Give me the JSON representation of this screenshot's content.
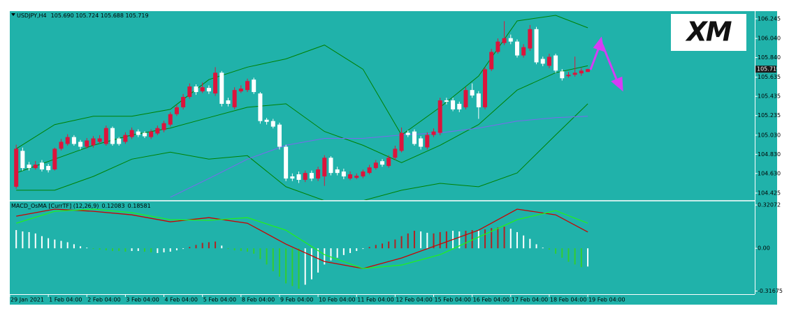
{
  "chart_data": [
    {
      "type": "candlestick",
      "title": "USDJPY,H4",
      "ohlc_label": "105.690 105.724 105.688 105.719",
      "up_color": "#dc143c",
      "down_color": "#ffffff",
      "logo": "XM",
      "xlim": [
        -1,
        115
      ],
      "ylim": [
        104.352,
        106.332
      ],
      "yticks": [
        106.245,
        {
          "value": 106.04,
          "label": "106.040"
        },
        {
          "value": 105.84,
          "label": "105.840"
        },
        105.635,
        105.435,
        105.235,
        {
          "value": 105.03,
          "label": "105.030"
        },
        {
          "value": 104.83,
          "label": "104.830"
        },
        {
          "value": 104.63,
          "label": "104.630"
        },
        104.425
      ],
      "open": [
        104.491,
        104.866,
        104.722,
        104.686,
        104.743,
        104.708,
        104.672,
        104.888,
        104.938,
        105.01,
        104.96,
        104.909,
        104.924,
        104.96,
        104.938,
        105.104,
        104.996,
        104.96,
        105.01,
        105.068,
        105.054,
        105.01,
        105.047,
        105.083,
        105.14,
        105.249,
        105.321,
        105.429,
        105.538,
        105.487,
        105.523,
        105.465,
        105.682,
        105.393,
        105.321,
        105.487,
        105.501,
        105.61,
        105.465,
        105.191,
        105.177,
        105.14,
        104.909,
        104.599,
        104.621,
        104.563,
        104.635,
        104.577,
        104.599,
        104.794,
        104.672,
        104.65,
        104.577,
        104.584,
        104.599,
        104.635,
        104.686,
        104.758,
        104.708,
        104.794,
        104.866,
        105.054,
        105.068,
        104.996,
        104.902,
        105.032,
        105.054,
        105.393,
        105.393,
        105.357,
        105.321,
        105.501,
        105.465,
        105.321,
        105.718,
        105.899,
        105.992,
        106.043,
        106.007,
        105.862,
        105.935,
        106.137,
        105.826,
        105.754,
        105.862,
        105.696,
        105.646,
        105.66,
        105.675,
        105.69
      ],
      "high": [
        104.93,
        104.9,
        104.75,
        104.76,
        104.77,
        104.73,
        104.9,
        104.99,
        105.04,
        105.03,
        104.98,
        105.0,
        105.02,
        105.03,
        105.13,
        105.12,
        105.01,
        105.06,
        105.11,
        105.09,
        105.07,
        105.09,
        105.13,
        105.18,
        105.27,
        105.35,
        105.46,
        105.57,
        105.56,
        105.58,
        105.55,
        105.74,
        105.7,
        105.42,
        105.53,
        105.55,
        105.62,
        105.63,
        105.48,
        105.21,
        105.2,
        105.16,
        104.93,
        104.63,
        104.65,
        104.66,
        104.66,
        104.7,
        104.82,
        104.81,
        104.7,
        104.68,
        104.65,
        104.63,
        104.67,
        104.72,
        104.77,
        104.78,
        104.82,
        104.92,
        105.11,
        105.08,
        105.09,
        105.02,
        105.06,
        105.1,
        105.42,
        105.42,
        105.42,
        105.38,
        105.53,
        105.57,
        105.49,
        105.74,
        105.93,
        106.04,
        106.22,
        106.08,
        106.03,
        105.98,
        106.18,
        106.16,
        105.85,
        105.88,
        105.88,
        105.72,
        105.69,
        105.85,
        105.73,
        105.724
      ],
      "low": [
        104.47,
        104.66,
        104.66,
        104.67,
        104.65,
        104.64,
        104.66,
        104.87,
        104.92,
        104.92,
        104.88,
        104.89,
        104.9,
        104.94,
        104.92,
        104.92,
        104.92,
        104.94,
        104.99,
        105.01,
        105.0,
        104.99,
        105.03,
        105.06,
        105.12,
        105.23,
        105.3,
        105.41,
        105.45,
        105.47,
        105.46,
        105.44,
        105.33,
        105.33,
        105.3,
        105.47,
        105.48,
        105.46,
        105.15,
        105.14,
        105.1,
        104.88,
        104.55,
        104.55,
        104.53,
        104.54,
        104.55,
        104.55,
        104.5,
        104.61,
        104.61,
        104.57,
        104.56,
        104.57,
        104.58,
        104.62,
        104.67,
        104.7,
        104.69,
        104.77,
        104.85,
        105.01,
        104.92,
        104.88,
        104.88,
        105.01,
        105.03,
        105.35,
        105.28,
        105.27,
        105.3,
        105.42,
        105.2,
        105.3,
        105.7,
        105.88,
        105.97,
        105.98,
        105.84,
        105.84,
        105.91,
        105.77,
        105.75,
        105.73,
        105.68,
        105.6,
        105.63,
        105.64,
        105.65,
        105.688
      ],
      "close": [
        104.888,
        104.686,
        104.686,
        104.722,
        104.672,
        104.664,
        104.888,
        104.96,
        105.01,
        104.938,
        104.909,
        104.974,
        104.996,
        104.996,
        105.104,
        104.938,
        104.938,
        105.032,
        105.083,
        105.032,
        105.018,
        105.068,
        105.104,
        105.155,
        105.249,
        105.321,
        105.429,
        105.538,
        105.48,
        105.53,
        105.487,
        105.682,
        105.357,
        105.357,
        105.501,
        105.516,
        105.595,
        105.48,
        105.177,
        105.169,
        105.119,
        104.909,
        104.577,
        104.577,
        104.563,
        104.635,
        104.577,
        104.672,
        104.794,
        104.635,
        104.635,
        104.599,
        104.621,
        104.606,
        104.65,
        104.693,
        104.743,
        104.722,
        104.794,
        104.888,
        105.054,
        105.032,
        104.938,
        104.909,
        105.032,
        105.068,
        105.393,
        105.379,
        105.299,
        105.299,
        105.501,
        105.444,
        105.321,
        105.718,
        105.899,
        106.007,
        106.043,
        106.007,
        105.862,
        105.949,
        106.137,
        105.79,
        105.776,
        105.848,
        105.704,
        105.624,
        105.66,
        105.682,
        105.704,
        105.719
      ],
      "lines": [
        {
          "color": "#008000",
          "x": [
            0,
            6,
            12,
            18,
            24,
            30,
            36,
            42,
            48,
            54,
            60,
            66,
            72,
            78,
            84,
            89
          ],
          "values": [
            104.888,
            105.14,
            105.227,
            105.227,
            105.299,
            105.61,
            105.74,
            105.826,
            105.971,
            105.718,
            105.032,
            105.321,
            105.646,
            106.223,
            106.281,
            106.151
          ]
        },
        {
          "color": "#008000",
          "x": [
            0,
            6,
            12,
            18,
            24,
            30,
            36,
            42,
            48,
            54,
            60,
            66,
            72,
            78,
            84,
            89
          ],
          "values": [
            104.635,
            104.779,
            104.924,
            105.032,
            105.104,
            105.213,
            105.321,
            105.357,
            105.068,
            104.924,
            104.743,
            104.924,
            105.14,
            105.501,
            105.682,
            105.754
          ]
        },
        {
          "color": "#008000",
          "x": [
            0,
            6,
            12,
            18,
            24,
            30,
            36,
            42,
            48,
            54,
            60,
            66,
            72,
            78,
            84,
            89
          ],
          "values": [
            104.455,
            104.455,
            104.599,
            104.779,
            104.852,
            104.779,
            104.816,
            104.491,
            104.346,
            104.346,
            104.455,
            104.527,
            104.491,
            104.635,
            105.032,
            105.357
          ]
        },
        {
          "color": "#7b68ee",
          "x": [
            24,
            30,
            36,
            42,
            48,
            54,
            60,
            66,
            72,
            78,
            84,
            89
          ],
          "values": [
            104.382,
            104.577,
            104.779,
            104.924,
            104.996,
            104.996,
            105.032,
            105.054,
            105.104,
            105.177,
            105.213,
            105.227
          ]
        }
      ]
    },
    {
      "type": "bar",
      "title": "MACD_OsMA [CurrTF] (12,26,9)",
      "xlim": [
        -1,
        115
      ],
      "ylim": [
        -0.34,
        0.347
      ],
      "yticks": [
        0.32072,
        {
          "value": 0,
          "label": "0.00"
        },
        -0.31675
      ],
      "xticks": [
        {
          "value": -1,
          "label": "29 Jan 2021"
        },
        {
          "value": 5,
          "label": "1 Feb 04:00"
        },
        {
          "value": 11,
          "label": "2 Feb 04:00"
        },
        {
          "value": 17,
          "label": "3 Feb 04:00"
        },
        {
          "value": 23,
          "label": "4 Feb 04:00"
        },
        {
          "value": 29,
          "label": "5 Feb 04:00"
        },
        {
          "value": 35,
          "label": "8 Feb 04:00"
        },
        {
          "value": 41,
          "label": "9 Feb 04:00"
        },
        {
          "value": 47,
          "label": "10 Feb 04:00"
        },
        {
          "value": 53,
          "label": "11 Feb 04:00"
        },
        {
          "value": 59,
          "label": "12 Feb 04:00"
        },
        {
          "value": 65,
          "label": "15 Feb 04:00"
        },
        {
          "value": 71,
          "label": "16 Feb 04:00"
        },
        {
          "value": 77,
          "label": "17 Feb 04:00"
        },
        {
          "value": 83,
          "label": "18 Feb 04:00"
        },
        {
          "value": 89,
          "label": "19 Feb 04:00"
        }
      ],
      "values": [
        0.135,
        0.125,
        0.12,
        0.11,
        0.09,
        0.075,
        0.065,
        0.055,
        0.045,
        0.03,
        0.015,
        0.005,
        -0.005,
        -0.01,
        -0.015,
        -0.02,
        -0.02,
        -0.025,
        -0.02,
        -0.02,
        -0.025,
        -0.03,
        -0.035,
        -0.03,
        -0.025,
        -0.015,
        -0.005,
        0.01,
        0.025,
        0.04,
        0.045,
        0.05,
        0.02,
        -0.005,
        -0.015,
        -0.02,
        -0.025,
        -0.04,
        -0.08,
        -0.12,
        -0.17,
        -0.21,
        -0.26,
        -0.28,
        -0.3,
        -0.27,
        -0.23,
        -0.18,
        -0.12,
        -0.09,
        -0.07,
        -0.05,
        -0.035,
        -0.02,
        -0.005,
        0.01,
        0.025,
        0.035,
        0.05,
        0.065,
        0.09,
        0.11,
        0.13,
        0.125,
        0.115,
        0.11,
        0.12,
        0.125,
        0.13,
        0.125,
        0.13,
        0.135,
        0.13,
        0.14,
        0.15,
        0.155,
        0.16,
        0.145,
        0.12,
        0.095,
        0.07,
        0.03,
        0.005,
        -0.01,
        -0.04,
        -0.07,
        -0.1,
        -0.12,
        -0.14,
        -0.135
      ],
      "colors": [
        "#ffffff",
        "#ffffff",
        "#ffffff",
        "#ffffff",
        "#ffffff",
        "#ffffff",
        "#ffffff",
        "#ffffff",
        "#ffffff",
        "#ffffff",
        "#ffffff",
        "#ffffff",
        "#32cd32",
        "#32cd32",
        "#32cd32",
        "#32cd32",
        "#32cd32",
        "#32cd32",
        "#ffffff",
        "#ffffff",
        "#32cd32",
        "#32cd32",
        "#ffffff",
        "#ffffff",
        "#ffffff",
        "#ffffff",
        "#ffffff",
        "#b22222",
        "#b22222",
        "#b22222",
        "#b22222",
        "#b22222",
        "#ffffff",
        "#32cd32",
        "#32cd32",
        "#32cd32",
        "#32cd32",
        "#32cd32",
        "#32cd32",
        "#32cd32",
        "#32cd32",
        "#32cd32",
        "#32cd32",
        "#32cd32",
        "#32cd32",
        "#ffffff",
        "#ffffff",
        "#ffffff",
        "#ffffff",
        "#ffffff",
        "#ffffff",
        "#ffffff",
        "#ffffff",
        "#ffffff",
        "#ffffff",
        "#b22222",
        "#b22222",
        "#b22222",
        "#b22222",
        "#b22222",
        "#b22222",
        "#b22222",
        "#b22222",
        "#ffffff",
        "#ffffff",
        "#b22222",
        "#b22222",
        "#b22222",
        "#ffffff",
        "#ffffff",
        "#b22222",
        "#b22222",
        "#ffffff",
        "#b22222",
        "#b22222",
        "#b22222",
        "#b22222",
        "#ffffff",
        "#ffffff",
        "#ffffff",
        "#ffffff",
        "#ffffff",
        "#ffffff",
        "#32cd32",
        "#32cd32",
        "#32cd32",
        "#32cd32",
        "#32cd32",
        "#32cd32",
        "#ffffff"
      ],
      "lines": [
        {
          "color": "#cc0000",
          "x": [
            0,
            6,
            12,
            18,
            24,
            30,
            36,
            42,
            48,
            54,
            60,
            66,
            72,
            78,
            84,
            89
          ],
          "values": [
            0.238,
            0.29,
            0.274,
            0.248,
            0.196,
            0.227,
            0.186,
            0.031,
            -0.098,
            -0.15,
            -0.072,
            0.031,
            0.134,
            0.29,
            0.248,
            0.12083
          ]
        },
        {
          "color": "#22ee22",
          "x": [
            0,
            6,
            12,
            18,
            24,
            30,
            36,
            42,
            48,
            54,
            60,
            66,
            72,
            78,
            84,
            89
          ],
          "values": [
            0.186,
            0.274,
            0.29,
            0.264,
            0.212,
            0.207,
            0.227,
            0.134,
            -0.047,
            -0.15,
            -0.124,
            -0.047,
            0.083,
            0.212,
            0.279,
            0.18581
          ]
        }
      ]
    }
  ]
}
